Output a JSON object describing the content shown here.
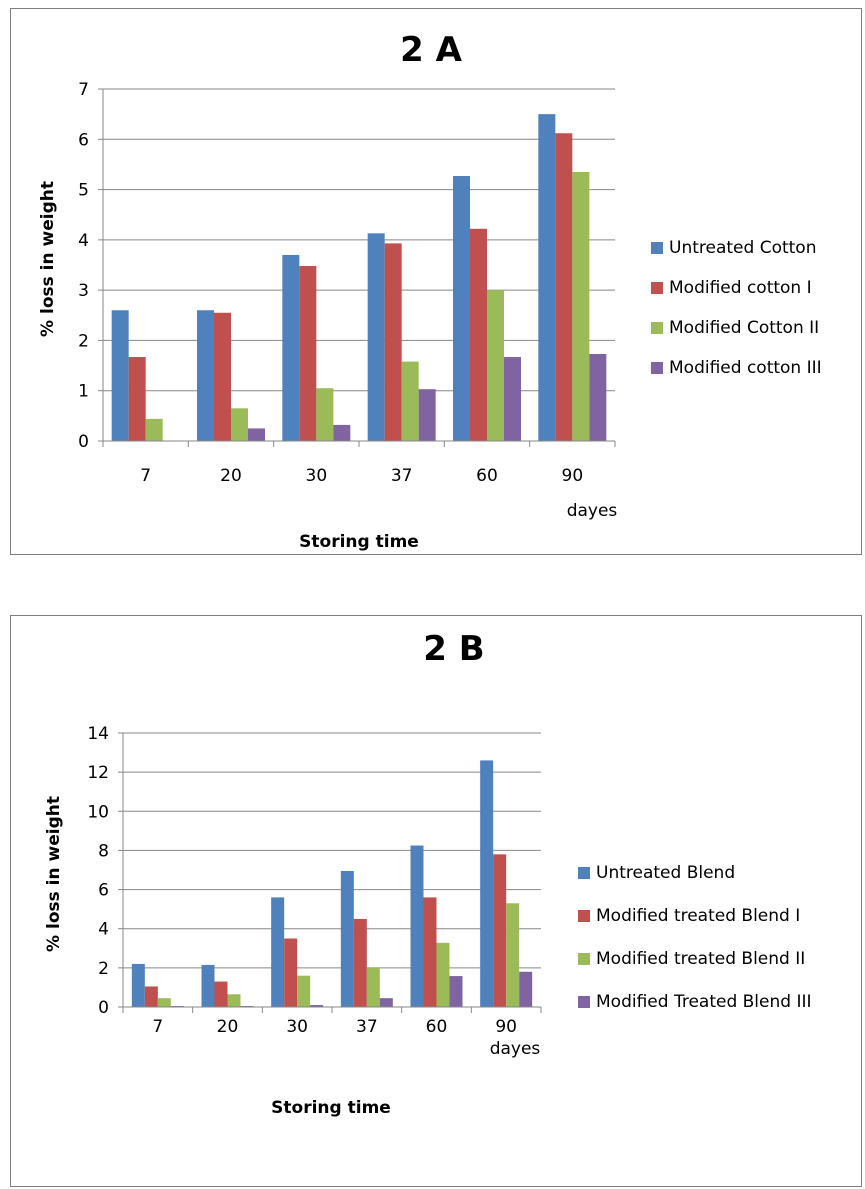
{
  "chart_data": [
    {
      "type": "bar",
      "title": "2 A",
      "xlabel": "Storing time",
      "ylabel": "% loss in weight",
      "categories": [
        "7",
        "20",
        "30",
        "37",
        "60",
        "90"
      ],
      "x_unit_label": "dayes",
      "ylim": [
        0,
        7
      ],
      "yticks": [
        0,
        1,
        2,
        3,
        4,
        5,
        6,
        7
      ],
      "grid": true,
      "legend_position": "right",
      "series": [
        {
          "name": "Untreated Cotton",
          "color": "#4f81bd",
          "values": [
            2.6,
            2.6,
            3.7,
            4.13,
            5.27,
            6.5
          ]
        },
        {
          "name": "Modified cotton I",
          "color": "#c0504d",
          "values": [
            1.67,
            2.55,
            3.48,
            3.93,
            4.22,
            6.12
          ]
        },
        {
          "name": "Modified Cotton II",
          "color": "#9bbb59",
          "values": [
            0.44,
            0.65,
            1.05,
            1.58,
            3.0,
            5.35
          ]
        },
        {
          "name": "Modified cotton III",
          "color": "#8064a2",
          "values": [
            0.0,
            0.25,
            0.32,
            1.03,
            1.67,
            1.73
          ]
        }
      ]
    },
    {
      "type": "bar",
      "title": "2 B",
      "xlabel": "Storing time",
      "ylabel": "% loss in weight",
      "categories": [
        "7",
        "20",
        "30",
        "37",
        "60",
        "90"
      ],
      "x_unit_label": "dayes",
      "ylim": [
        0,
        14
      ],
      "yticks": [
        0,
        2,
        4,
        6,
        8,
        10,
        12,
        14
      ],
      "grid": true,
      "legend_position": "right",
      "series": [
        {
          "name": "Untreated Blend",
          "color": "#4f81bd",
          "values": [
            2.2,
            2.15,
            5.6,
            6.95,
            8.25,
            12.6
          ]
        },
        {
          "name": "Modified treated Blend I",
          "color": "#c0504d",
          "values": [
            1.05,
            1.3,
            3.5,
            4.5,
            5.6,
            7.8
          ]
        },
        {
          "name": "Modified treated Blend II",
          "color": "#9bbb59",
          "values": [
            0.45,
            0.65,
            1.6,
            2.0,
            3.28,
            5.3
          ]
        },
        {
          "name": "Modified Treated Blend III",
          "color": "#8064a2",
          "values": [
            0.05,
            0.05,
            0.1,
            0.45,
            1.58,
            1.8
          ]
        }
      ]
    }
  ]
}
